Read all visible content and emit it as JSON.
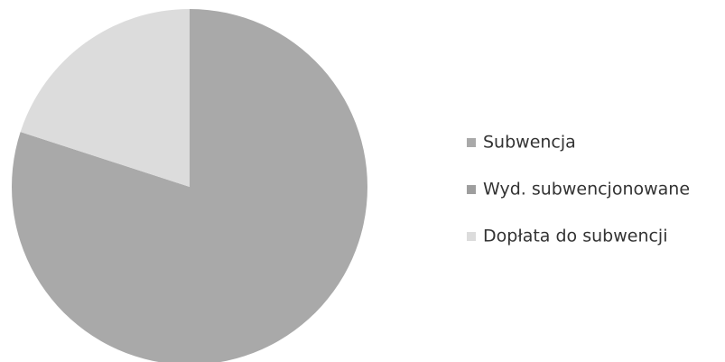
{
  "chart_data": {
    "type": "pie",
    "categories": [
      "Subwencja",
      "Wyd. subwencjonowane",
      "Dopłata do subwencji"
    ],
    "values": [
      80,
      0,
      20
    ],
    "colors": [
      "#a9a9a9",
      "#9e9e9e",
      "#dcdcdc"
    ],
    "legend": "right"
  }
}
